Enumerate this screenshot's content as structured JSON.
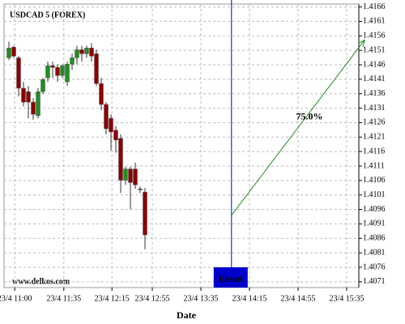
{
  "chart_data": {
    "type": "candlestick",
    "title": "USDCAD 5 (FOREX)",
    "watermark": "www.delkos.com",
    "x_label": "Date",
    "up_color": "#1f8f1f",
    "down_color": "#8b0000",
    "grid": true,
    "x": [
      0,
      1,
      2,
      3,
      4,
      5,
      6,
      7,
      8,
      9,
      10,
      11,
      12,
      13,
      14,
      15,
      16,
      17,
      18,
      19,
      20,
      21,
      22,
      23,
      24,
      25,
      26,
      27,
      28
    ],
    "open": [
      1.41484,
      1.41521,
      1.41484,
      1.41379,
      1.41367,
      1.41331,
      1.41284,
      1.41367,
      1.41415,
      1.41457,
      1.41451,
      1.41423,
      1.41401,
      1.41462,
      1.41484,
      1.41512,
      1.41498,
      1.41518,
      1.41498,
      1.41395,
      1.41323,
      1.41275,
      1.41234,
      1.41206,
      1.41061,
      1.411,
      1.411,
      1.41031,
      1.4102
    ],
    "close": [
      1.41518,
      1.4149,
      1.41379,
      1.41331,
      1.41331,
      1.41289,
      1.41367,
      1.41409,
      1.41457,
      1.41451,
      1.41423,
      1.41457,
      1.41462,
      1.41484,
      1.41512,
      1.41498,
      1.41518,
      1.4149,
      1.41395,
      1.41323,
      1.41239,
      1.41228,
      1.412,
      1.41061,
      1.411,
      1.41053,
      1.41045,
      1.41028,
      1.40872
    ],
    "high": [
      1.4154,
      1.41526,
      1.4149,
      1.41401,
      1.41387,
      1.41345,
      1.41379,
      1.41415,
      1.41471,
      1.41471,
      1.41462,
      1.41462,
      1.41471,
      1.41498,
      1.41526,
      1.41526,
      1.41526,
      1.41535,
      1.41512,
      1.41415,
      1.41331,
      1.41289,
      1.41248,
      1.4122,
      1.41108,
      1.41108,
      1.41122,
      1.41039,
      1.41034
    ],
    "low": [
      1.41476,
      1.41484,
      1.41351,
      1.41317,
      1.41275,
      1.4127,
      1.41275,
      1.41359,
      1.41401,
      1.41415,
      1.41401,
      1.41415,
      1.41387,
      1.41443,
      1.41462,
      1.41471,
      1.41484,
      1.41471,
      1.41387,
      1.41303,
      1.4122,
      1.41164,
      1.41156,
      1.41017,
      1.41045,
      1.40961,
      1.41031,
      1.41017,
      1.40822
    ],
    "xlim": [
      -1,
      72
    ],
    "xticks": [
      {
        "value": 1.2,
        "label": "23/4 11:00"
      },
      {
        "value": 11.3,
        "label": "23/4 11:35"
      },
      {
        "value": 21.2,
        "label": "23/4 12:15"
      },
      {
        "value": 29.5,
        "label": "23/4 12:55"
      },
      {
        "value": 39.5,
        "label": "23/4 13:35"
      },
      {
        "value": 49.5,
        "label": "23/4 14:15"
      },
      {
        "value": 59.5,
        "label": "23/4 14:55"
      },
      {
        "value": 69.5,
        "label": "23/4 15:35"
      }
    ],
    "ylim": [
      1.4069,
      1.4167
    ],
    "yticks": [
      1.4071,
      1.4076,
      1.4081,
      1.4086,
      1.4091,
      1.4096,
      1.4101,
      1.4106,
      1.4111,
      1.4116,
      1.4121,
      1.4126,
      1.4131,
      1.4136,
      1.4141,
      1.4146,
      1.4151,
      1.4156,
      1.4161,
      1.4166
    ],
    "event": {
      "x": 45.8,
      "label": "Event",
      "color": "#0000cc"
    },
    "arrow": {
      "x": [
        45.8,
        73.2
      ],
      "y": [
        1.4094,
        1.41546
      ],
      "label": "75.0%",
      "color": "#1f8f1f"
    }
  }
}
